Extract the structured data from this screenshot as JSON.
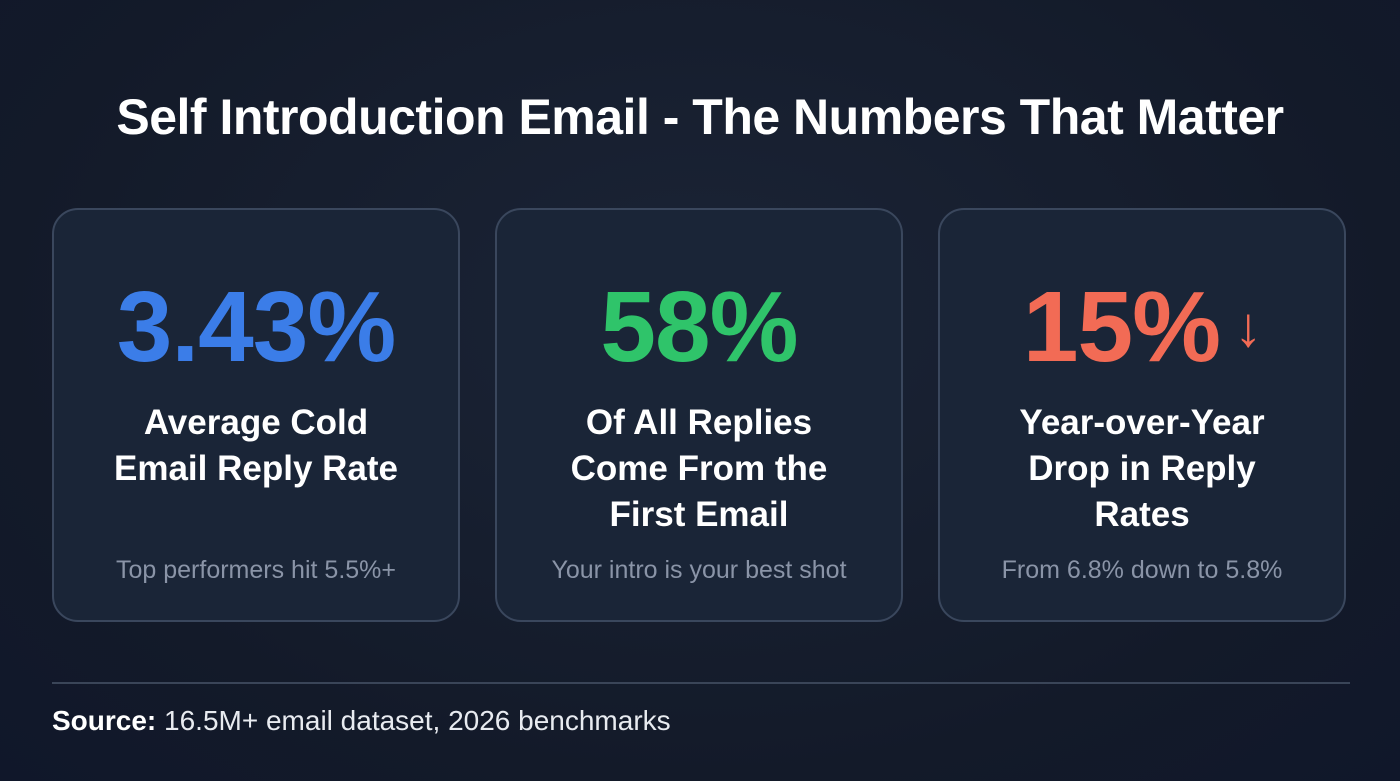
{
  "title": "Self Introduction Email - The Numbers That Matter",
  "colors": {
    "blue": "#3b7de8",
    "green": "#2fc46a",
    "red": "#f26b55"
  },
  "cards": [
    {
      "value": "3.43%",
      "label_lines": [
        "Average Cold",
        "Email Reply Rate"
      ],
      "sub": "Top performers hit 5.5%+"
    },
    {
      "value": "58%",
      "label_lines": [
        "Of All Replies",
        "Come From the",
        "First Email"
      ],
      "sub": "Your intro is your best shot"
    },
    {
      "value": "15%",
      "icon": "arrow-down-icon",
      "arrow": "↓",
      "label_lines": [
        "Year-over-Year",
        "Drop in Reply",
        "Rates"
      ],
      "sub": "From 6.8% down to 5.8%"
    }
  ],
  "source": {
    "label": "Source:",
    "text": " 16.5M+ email dataset, 2026 benchmarks"
  }
}
